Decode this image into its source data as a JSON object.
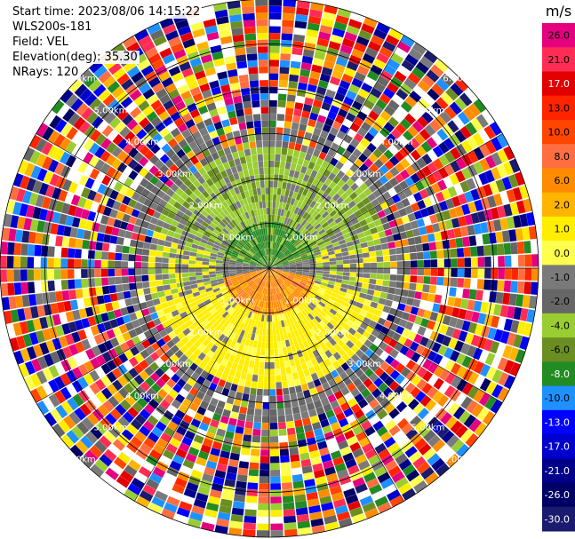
{
  "header": {
    "start_time": "Start time: 2023/08/06 14:15:22",
    "instrument": "WLS200s-181",
    "field": "Field: VEL",
    "elevation": "Elevation(deg): 35.30",
    "nrays": "NRays: 120"
  },
  "chart_data": {
    "type": "heatmap",
    "projection": "polar-ppi",
    "field": "VEL",
    "nrays": 120,
    "max_range_km": 6,
    "range_rings_km": [
      1.0,
      2.0,
      3.0,
      4.0,
      5.0,
      6.0
    ],
    "ring_labels": [
      "1.00km",
      "2.00km",
      "3.00km",
      "4.00km",
      "5.00km",
      "6.00km"
    ],
    "colorbar": {
      "unit": "m/s",
      "tick_labels": [
        "26.0",
        "21.0",
        "17.0",
        "13.0",
        "10.0",
        "8.0",
        "6.0",
        "2.0",
        "1.0",
        "0.0",
        "-1.0",
        "-2.0",
        "-4.0",
        "-6.0",
        "-8.0",
        "-10.0",
        "-13.0",
        "-17.0",
        "-21.0",
        "-26.0",
        "-30.0"
      ],
      "colors": [
        "#e4007f",
        "#ff2d55",
        "#e30000",
        "#ff2400",
        "#ff4500",
        "#ff6e40",
        "#ff8c00",
        "#ffb400",
        "#ffee00",
        "#ffff4d",
        "#7a7a7a",
        "#666666",
        "#9acd32",
        "#6b8e23",
        "#228b22",
        "#1e90ff",
        "#0000ff",
        "#0000cd",
        "#00008b",
        "#000066",
        "#1a1a6e"
      ]
    },
    "velocity_pattern": {
      "near_range_north": "negative (-2 to -6 m/s)",
      "near_range_south": "positive (1 to 10 m/s)",
      "far_range": "noise (full range -30 to 26 m/s)"
    }
  }
}
